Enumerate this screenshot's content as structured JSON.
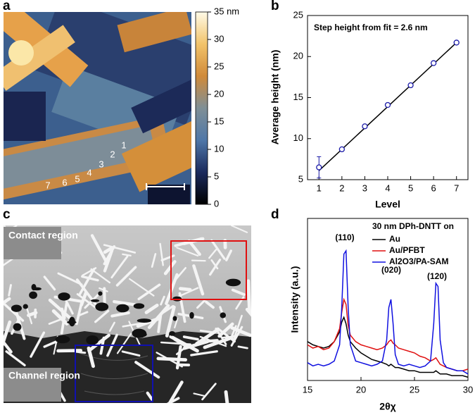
{
  "chart_data": [
    {
      "type": "image",
      "panel_label": "a",
      "annotations": [
        "1",
        "2",
        "3",
        "4",
        "5",
        "6",
        "7"
      ],
      "colorbar": {
        "lim": [
          0,
          35
        ],
        "ticks": [
          0,
          5,
          10,
          15,
          20,
          25,
          30,
          {
            "value": 35,
            "label": "35 nm"
          }
        ],
        "colors": [
          "#000000",
          "#1b2a5c",
          "#4f77a8",
          "#7f8f96",
          "#d08a3a",
          "#f2c36a",
          "#fffbe8"
        ]
      }
    },
    {
      "type": "line",
      "panel_label": "b",
      "annotation": "Step height from fit = 2.6 nm",
      "xlabel": "Level",
      "ylabel": "Average height (nm)",
      "series": [
        {
          "color": "#1a1aa8",
          "x": [
            1,
            2,
            3,
            4,
            5,
            6,
            7
          ],
          "values": [
            6.5,
            8.7,
            11.5,
            14.1,
            16.5,
            19.2,
            21.7
          ],
          "errors": [
            1.3,
            0.1,
            0.1,
            0.1,
            0.1,
            0.1,
            0.1
          ]
        }
      ],
      "fit": {
        "color": "#000000",
        "x": [
          1,
          7
        ],
        "values": [
          6.1,
          21.7
        ]
      },
      "xlim": [
        0.5,
        7.5
      ],
      "xticks": [
        1,
        2,
        3,
        4,
        5,
        6,
        7
      ],
      "ylim": [
        5,
        25
      ],
      "yticks": [
        5,
        10,
        15,
        20,
        25
      ]
    },
    {
      "type": "image",
      "panel_label": "c",
      "annotations": [
        "Contact region",
        "Channel region"
      ]
    },
    {
      "type": "line",
      "panel_label": "d",
      "legend_title": "30 nm DPh-DNTT on",
      "legend": "upper right",
      "xlabel": "2θχ",
      "ylabel": "Intensity (a.u.)",
      "annotations": [
        "(110)",
        "(020)",
        "(120)"
      ],
      "xlim": [
        15,
        30
      ],
      "xticks": [
        15,
        20,
        25,
        30
      ],
      "ylim": [
        0,
        100
      ],
      "x": [
        15,
        15.5,
        16,
        16.5,
        17,
        17.5,
        18,
        18.2,
        18.4,
        18.6,
        18.8,
        19,
        19.5,
        20,
        20.5,
        21,
        21.5,
        22,
        22.4,
        22.6,
        22.8,
        23,
        23.2,
        23.5,
        24,
        24.5,
        25,
        25.5,
        26,
        26.5,
        26.8,
        27,
        27.2,
        27.4,
        27.7,
        28,
        28.5,
        29,
        29.5,
        30
      ],
      "series": [
        {
          "name": "Au",
          "color": "#000000",
          "values": [
            24,
            22,
            21,
            20,
            21,
            24,
            30,
            36,
            39,
            35,
            28,
            24,
            20,
            17,
            15,
            13,
            12,
            11,
            10,
            9,
            10,
            9,
            8,
            8,
            7,
            6,
            6,
            5,
            5,
            5,
            5,
            6,
            5,
            4,
            4,
            4,
            3,
            3,
            3,
            2
          ]
        },
        {
          "name": "Au/PFBT",
          "color": "#e01010",
          "values": [
            22,
            20,
            21,
            19,
            20,
            24,
            32,
            42,
            50,
            47,
            34,
            28,
            24,
            22,
            21,
            20,
            19,
            20,
            22,
            24,
            25,
            23,
            22,
            20,
            19,
            18,
            17,
            15,
            14,
            12,
            13,
            14,
            12,
            10,
            9,
            8,
            7,
            6,
            6,
            7
          ]
        },
        {
          "name": "Al2O3/PA-SAM",
          "color": "#1010e0",
          "values": [
            11,
            9,
            10,
            9,
            10,
            12,
            22,
            45,
            78,
            80,
            45,
            22,
            12,
            11,
            10,
            9,
            10,
            12,
            25,
            45,
            50,
            35,
            16,
            10,
            9,
            10,
            9,
            8,
            9,
            12,
            35,
            60,
            58,
            25,
            11,
            8,
            7,
            6,
            6,
            4
          ]
        }
      ]
    }
  ]
}
